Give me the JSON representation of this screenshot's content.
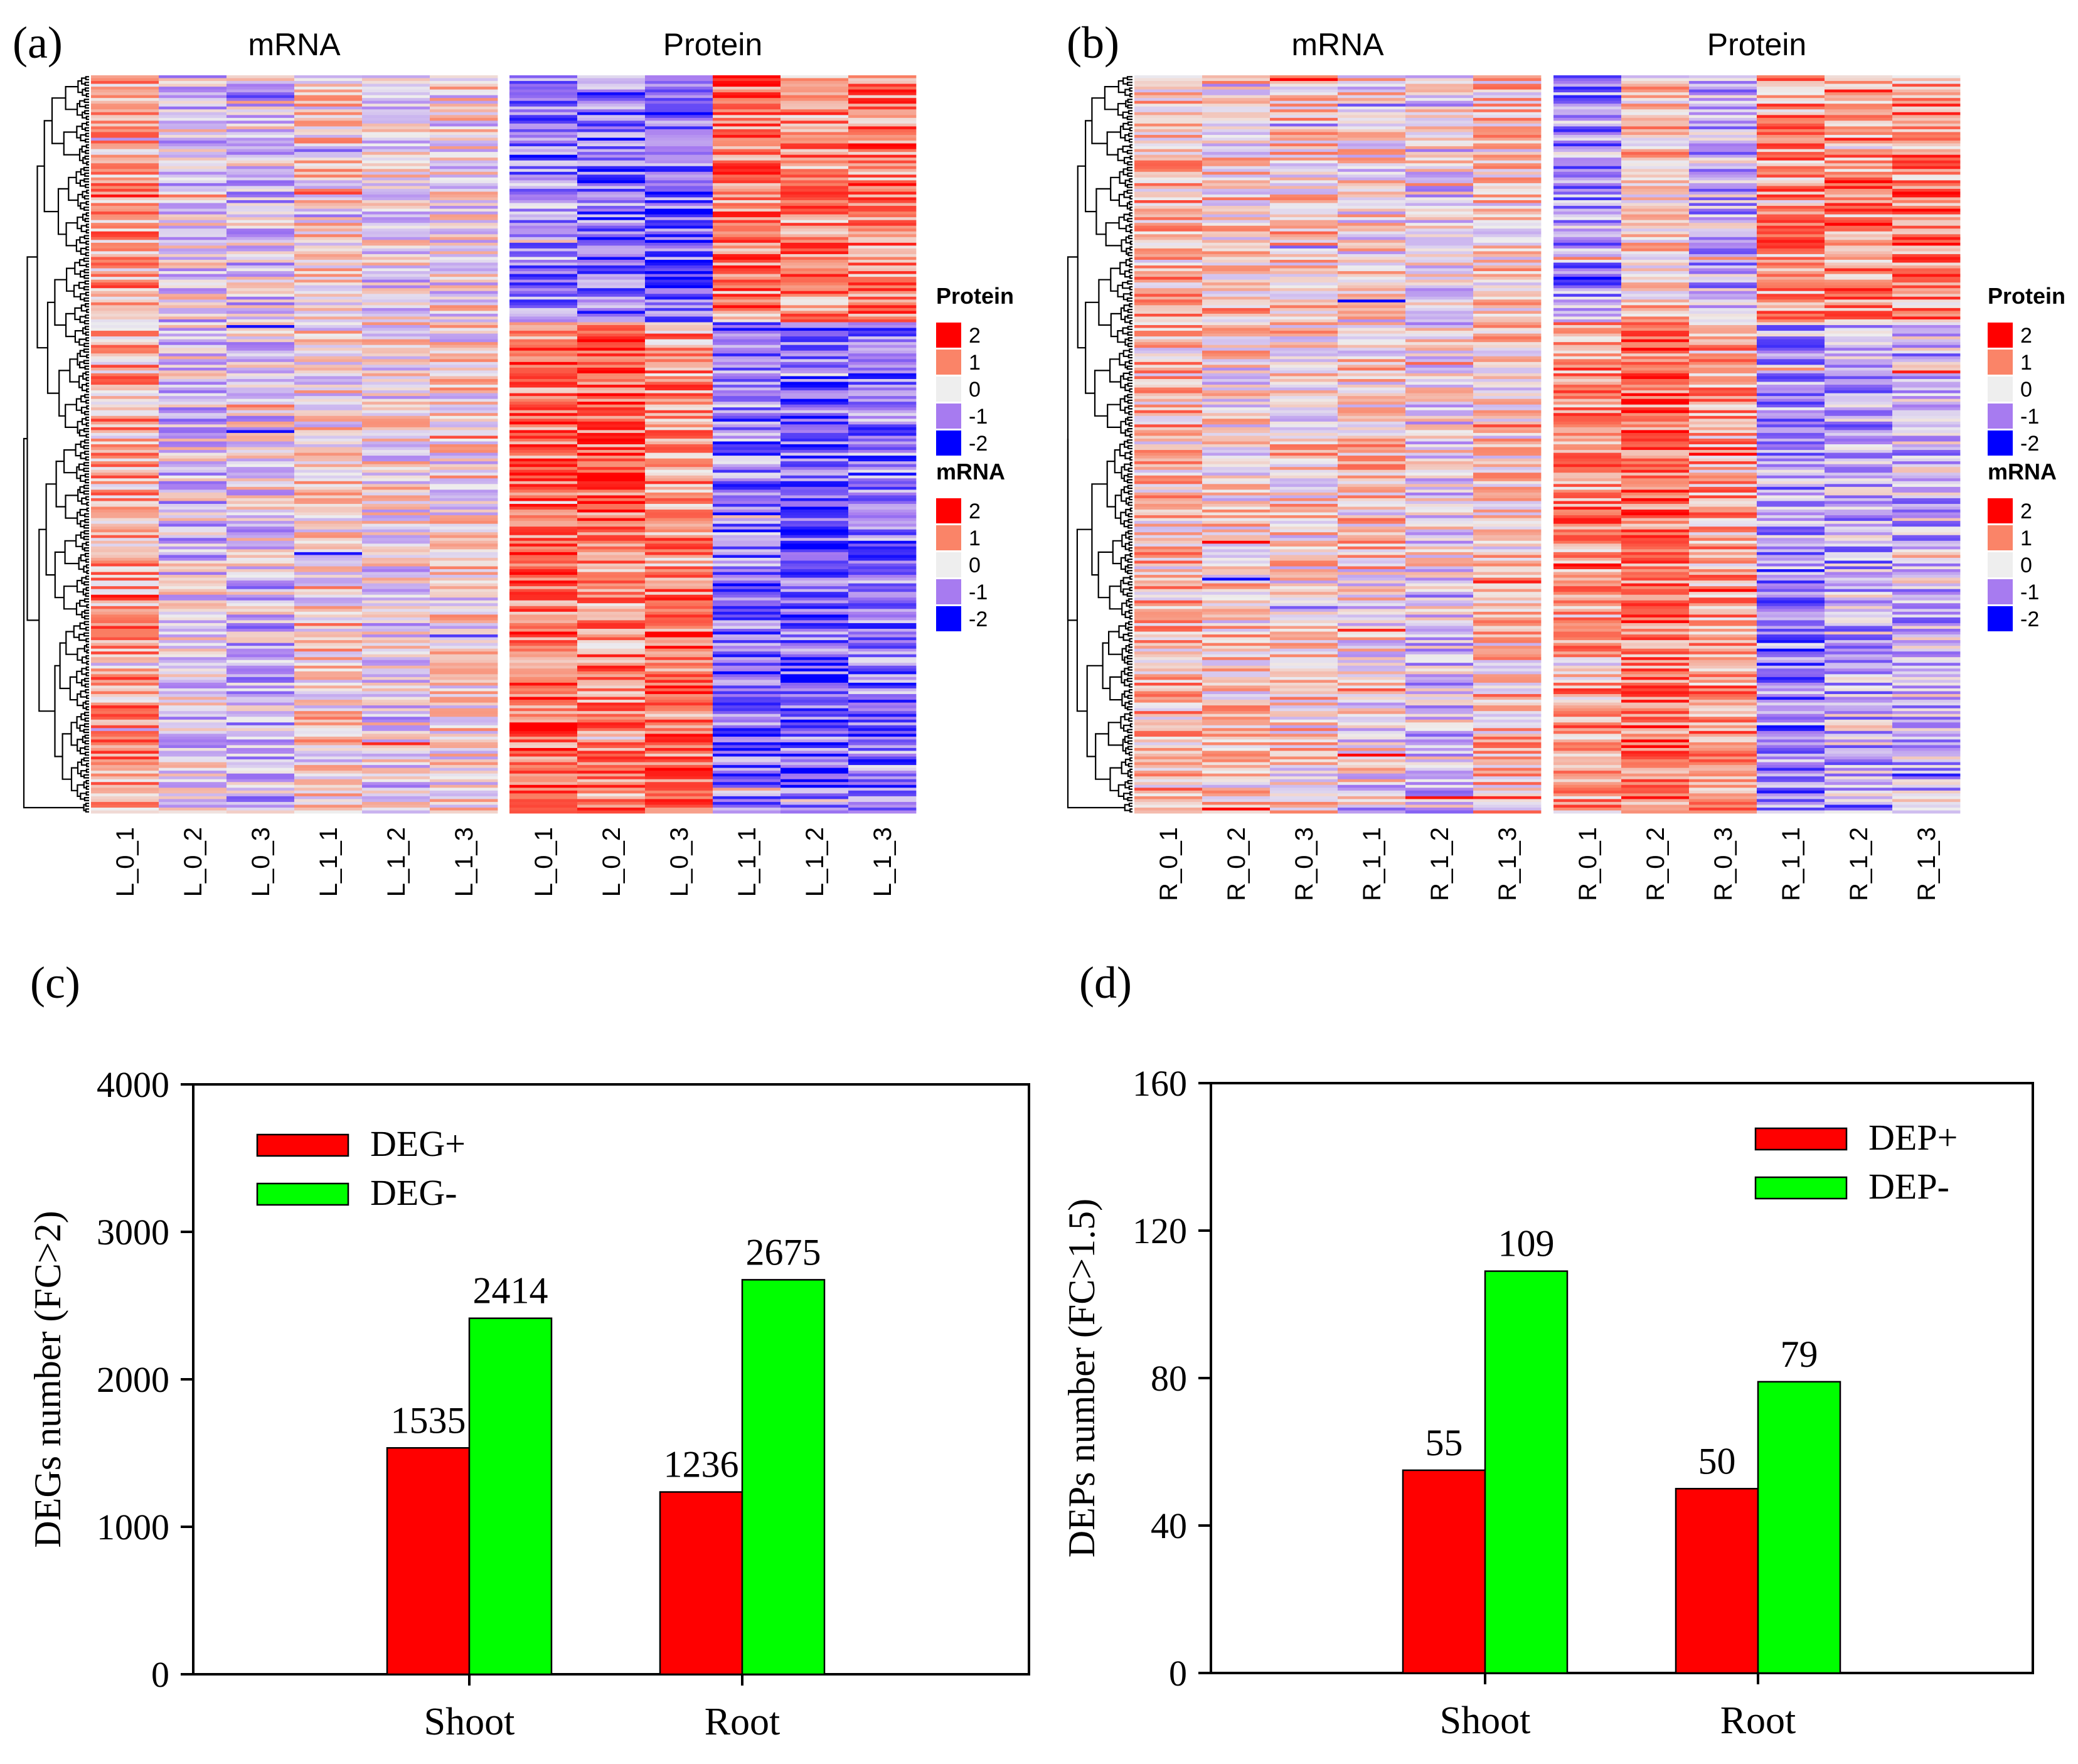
{
  "colors": {
    "red": "#FF0000",
    "green": "#00FF00",
    "hm_pos2": "#FF0000",
    "hm_pos1": "#FA8468",
    "hm_zero": "#EEEEEE",
    "hm_neg1": "#A77BF0",
    "hm_neg2": "#0000FF"
  },
  "chart_data": [
    {
      "panel": "(a)",
      "type": "heatmap",
      "blocks": [
        {
          "title": "mRNA",
          "columns": [
            "L_0_1",
            "L_0_2",
            "L_0_3",
            "L_1_1",
            "L_1_2",
            "L_1_3"
          ]
        },
        {
          "title": "Protein",
          "columns": [
            "L_0_1",
            "L_0_2",
            "L_0_3",
            "L_1_1",
            "L_1_2",
            "L_1_3"
          ]
        }
      ],
      "column_means": {
        "mRNA": [
          [
            0.7,
            -0.2,
            -0.3,
            0.2,
            -0.1,
            0.0
          ],
          [
            0.6,
            -0.3,
            -0.2,
            0.1,
            0.0,
            0.1
          ],
          [
            0.8,
            -0.2,
            -0.4,
            0.2,
            -0.2,
            0.1
          ]
        ],
        "Protein": [
          [
            -0.9,
            -1.1,
            -1.2,
            1.0,
            0.9,
            1.0
          ],
          [
            1.1,
            1.3,
            0.8,
            -1.0,
            -1.2,
            -1.0
          ],
          [
            1.2,
            0.9,
            1.1,
            -1.1,
            -1.2,
            -1.0
          ]
        ]
      },
      "legends": [
        {
          "title": "Protein",
          "values": [
            "2",
            "1",
            "0",
            "-1",
            "-2"
          ]
        },
        {
          "title": "mRNA",
          "values": [
            "2",
            "1",
            "0",
            "-1",
            "-2"
          ]
        }
      ]
    },
    {
      "panel": "(b)",
      "type": "heatmap",
      "blocks": [
        {
          "title": "mRNA",
          "columns": [
            "R_0_1",
            "R_0_2",
            "R_0_3",
            "R_1_1",
            "R_1_2",
            "R_1_3"
          ]
        },
        {
          "title": "Protein",
          "columns": [
            "R_0_1",
            "R_0_2",
            "R_0_3",
            "R_1_1",
            "R_1_2",
            "R_1_3"
          ]
        }
      ],
      "column_means": {
        "mRNA": [
          [
            0.5,
            0.2,
            0.3,
            0.1,
            -0.2,
            0.3
          ],
          [
            0.4,
            0.1,
            0.2,
            0.3,
            -0.1,
            0.2
          ],
          [
            0.5,
            0.3,
            0.2,
            0.0,
            -0.3,
            0.4
          ]
        ],
        "Protein": [
          [
            -0.8,
            0.3,
            -0.5,
            0.8,
            0.9,
            0.9
          ],
          [
            0.9,
            1.2,
            0.6,
            -0.7,
            -0.6,
            -0.5
          ],
          [
            0.7,
            1.1,
            0.8,
            -1.0,
            -0.5,
            -0.4
          ]
        ]
      },
      "legends": [
        {
          "title": "Protein",
          "values": [
            "2",
            "1",
            "0",
            "-1",
            "-2"
          ]
        },
        {
          "title": "mRNA",
          "values": [
            "2",
            "1",
            "0",
            "-1",
            "-2"
          ]
        }
      ]
    },
    {
      "panel": "(c)",
      "type": "bar",
      "categories": [
        "Shoot",
        "Root"
      ],
      "series": [
        {
          "name": "DEG+",
          "color": "#FF0000",
          "values": [
            1535,
            1236
          ]
        },
        {
          "name": "DEG-",
          "color": "#00FF00",
          "values": [
            2414,
            2675
          ]
        }
      ],
      "ylabel": "DEGs number (FC>2)",
      "ylim": [
        0,
        4000
      ],
      "yticks": [
        0,
        1000,
        2000,
        3000,
        4000
      ],
      "legend": "top-left"
    },
    {
      "panel": "(d)",
      "type": "bar",
      "categories": [
        "Shoot",
        "Root"
      ],
      "series": [
        {
          "name": "DEP+",
          "color": "#FF0000",
          "values": [
            55,
            50
          ]
        },
        {
          "name": "DEP-",
          "color": "#00FF00",
          "values": [
            109,
            79
          ]
        }
      ],
      "ylabel": "DEPs number (FC>1.5)",
      "ylim": [
        0,
        160
      ],
      "yticks": [
        0,
        40,
        80,
        120,
        160
      ],
      "legend": "top-right"
    }
  ]
}
